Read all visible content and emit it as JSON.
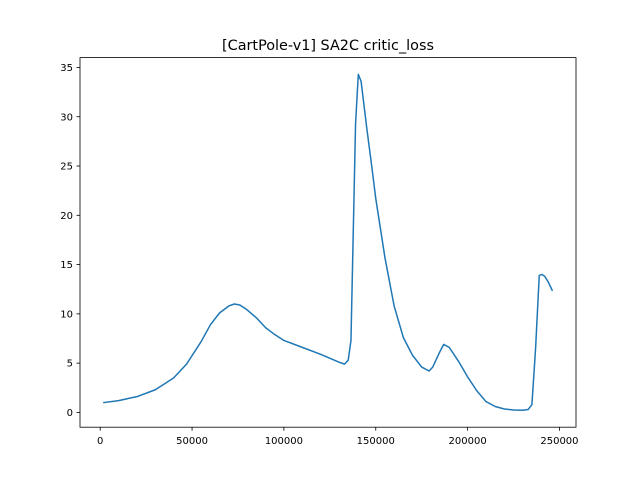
{
  "chart_data": {
    "type": "line",
    "title": "[CartPole-v1] SA2C critic_loss",
    "xlabel": "",
    "ylabel": "",
    "xlim": [
      -11000,
      259000
    ],
    "ylim": [
      -1.5,
      36
    ],
    "xticks": [
      0,
      50000,
      100000,
      150000,
      200000,
      250000
    ],
    "xtick_labels": [
      "0",
      "50000",
      "100000",
      "150000",
      "200000",
      "250000"
    ],
    "yticks": [
      0,
      5,
      10,
      15,
      20,
      25,
      30,
      35
    ],
    "ytick_labels": [
      "0",
      "5",
      "10",
      "15",
      "20",
      "25",
      "30",
      "35"
    ],
    "grid": false,
    "legend": "none",
    "series": [
      {
        "color": "#1f77b4",
        "x": [
          2000,
          10000,
          20000,
          30000,
          40000,
          47000,
          55000,
          60000,
          65000,
          70000,
          73000,
          76000,
          80000,
          85000,
          90000,
          95000,
          100000,
          110000,
          120000,
          130000,
          133000,
          135000,
          136500,
          139000,
          140500,
          142000,
          145000,
          148000,
          150000,
          155000,
          160000,
          165000,
          170000,
          175000,
          179000,
          181000,
          185000,
          187000,
          190000,
          195000,
          200000,
          205000,
          210000,
          215000,
          220000,
          225000,
          230000,
          233000,
          235000,
          237000,
          239000,
          240500,
          242000,
          244000,
          246000
        ],
        "y": [
          1.0,
          1.2,
          1.6,
          2.3,
          3.5,
          4.9,
          7.2,
          8.9,
          10.1,
          10.8,
          11.0,
          10.9,
          10.4,
          9.6,
          8.6,
          7.9,
          7.3,
          6.6,
          5.9,
          5.1,
          4.9,
          5.3,
          7.3,
          29.3,
          34.3,
          33.6,
          29.0,
          24.7,
          21.7,
          15.7,
          10.8,
          7.6,
          5.8,
          4.6,
          4.2,
          4.6,
          6.2,
          6.9,
          6.6,
          5.2,
          3.6,
          2.2,
          1.1,
          0.6,
          0.35,
          0.25,
          0.22,
          0.3,
          0.8,
          6.5,
          13.9,
          14.0,
          13.8,
          13.2,
          12.4
        ]
      }
    ]
  }
}
